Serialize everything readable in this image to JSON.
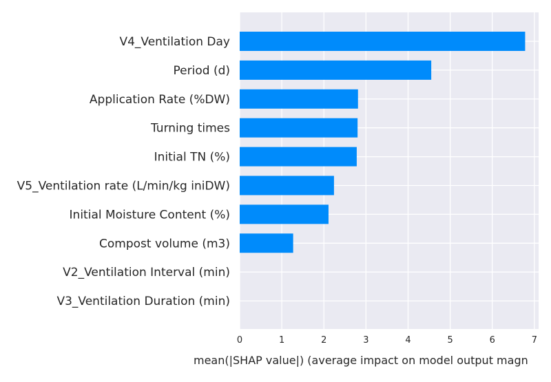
{
  "chart_data": {
    "type": "bar",
    "orientation": "horizontal",
    "title": "",
    "ylabel": "",
    "xlabel": "mean(|SHAP value|) (average impact on model output magn",
    "categories": [
      "V4_Ventilation Day",
      "Period (d)",
      "Application Rate (%DW)",
      "Turning times",
      "Initial TN (%)",
      "V5_Ventilation rate (L/min/kg iniDW)",
      "Initial Moisture Content (%)",
      "Compost volume (m3)",
      "V2_Ventilation Interval (min)",
      "V3_Ventilation Duration (min)"
    ],
    "values": [
      6.78,
      4.55,
      2.81,
      2.8,
      2.78,
      2.24,
      2.11,
      1.27,
      0,
      0
    ],
    "xlim": [
      0,
      7.1
    ],
    "xticks": [
      0,
      1,
      2,
      3,
      4,
      5,
      6,
      7
    ],
    "grid": true,
    "bar_color": "#008bfb",
    "background_color": "#eaeaf2",
    "grid_color": "#ffffff"
  }
}
